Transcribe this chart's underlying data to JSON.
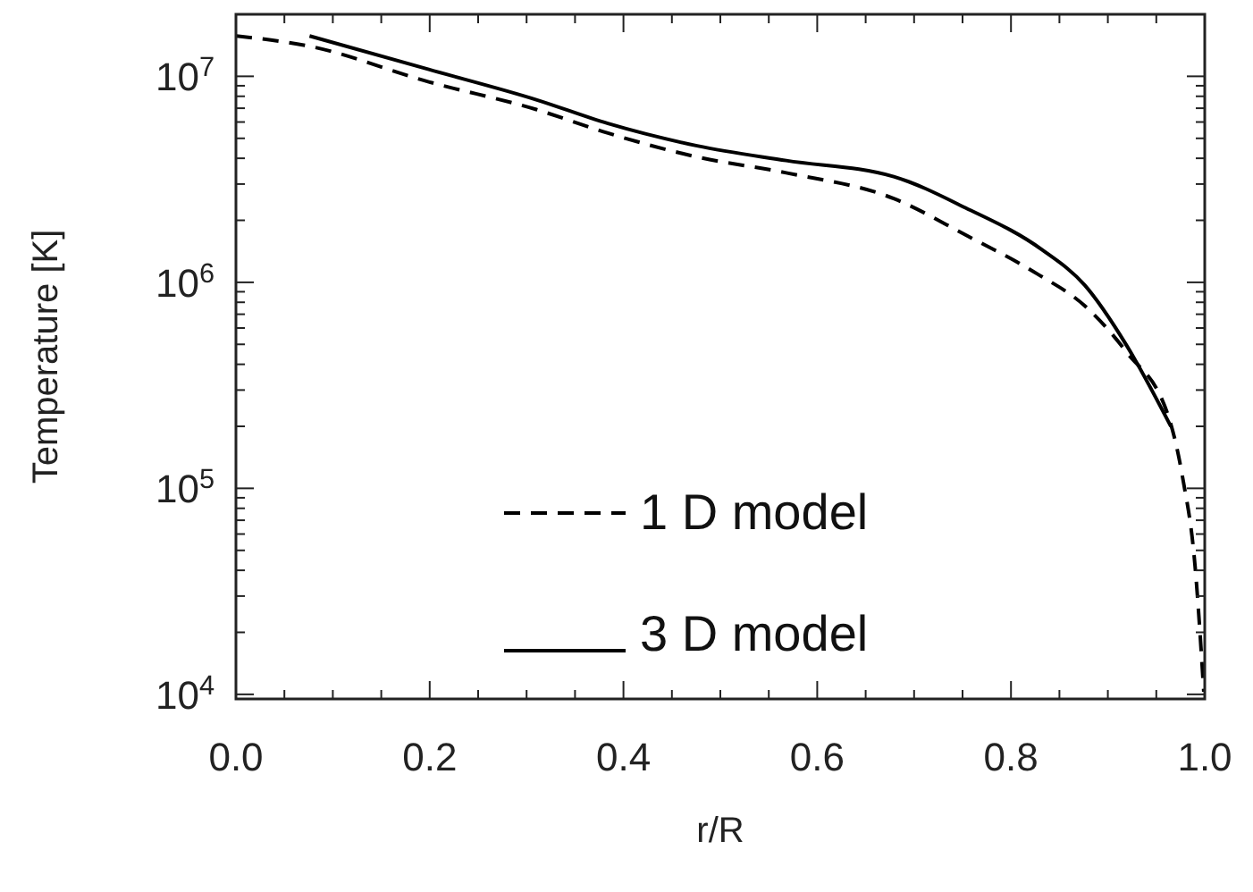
{
  "chart_data": {
    "type": "line",
    "xlabel": "r/R",
    "ylabel": "Temperature [K]",
    "log": "y",
    "xlim": [
      0,
      1
    ],
    "xticks": [
      {
        "value": 0,
        "label": "0.0"
      },
      {
        "value": 0.2,
        "label": "0.2"
      },
      {
        "value": 0.4,
        "label": "0.4"
      },
      {
        "value": 0.6,
        "label": "0.6"
      },
      {
        "value": 0.8,
        "label": "0.8"
      },
      {
        "value": 1,
        "label": "1.0"
      }
    ],
    "ylim": [
      9500,
      20000000
    ],
    "yticks": [
      {
        "value": 10000,
        "label": "10$^{4}$"
      },
      {
        "value": 100000,
        "label": "10$^{5}$"
      },
      {
        "value": 1000000,
        "label": "10$^{6}$"
      },
      {
        "value": 10000000,
        "label": "10$^{7}$"
      }
    ],
    "grid": false,
    "legend": "bottom",
    "series": [
      {
        "name": "1 D model",
        "color": "#000000",
        "line_style": "dashed",
        "x": [
          0,
          0.076,
          0.199,
          0.31,
          0.384,
          0.476,
          0.568,
          0.679,
          0.753,
          0.827,
          0.876,
          0.919,
          0.963,
          0.977,
          0.99,
          0.999
        ],
        "values": [
          15700000,
          14000000,
          9400000,
          6900000,
          5300000,
          4060000,
          3400000,
          2550000,
          1700000,
          1100000,
          770000,
          460000,
          220000,
          114000,
          42000,
          10300
        ]
      },
      {
        "name": "3 D model",
        "color": "#000000",
        "line_style": "solid",
        "x": [
          0.076,
          0.199,
          0.31,
          0.384,
          0.476,
          0.568,
          0.679,
          0.753,
          0.832,
          0.876,
          0.919,
          0.965
        ],
        "values": [
          15700000,
          10800000,
          7700000,
          5900000,
          4600000,
          3900000,
          3260000,
          2300000,
          1440000,
          970000,
          497000,
          200000
        ]
      }
    ]
  }
}
